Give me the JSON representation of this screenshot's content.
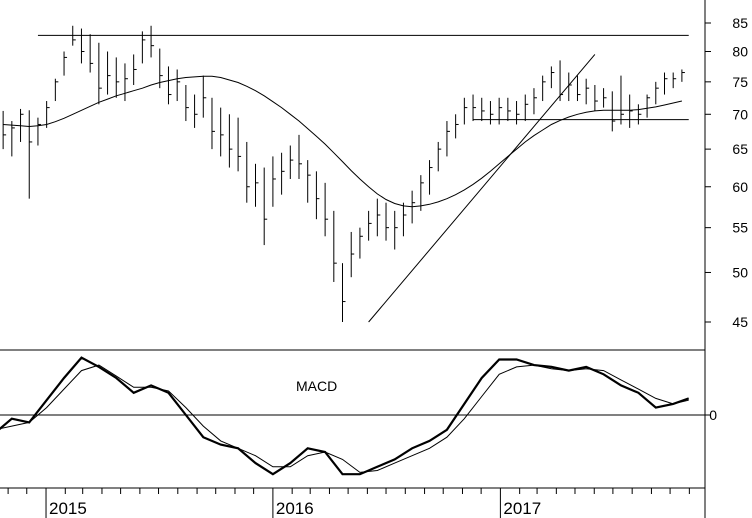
{
  "chart_data": [
    {
      "type": "ohlc",
      "panel": "price",
      "title": "",
      "y_scale": "log",
      "ylim": [
        42,
        88
      ],
      "y_ticks": [
        "85",
        "80",
        "75",
        "70",
        "65",
        "60",
        "55",
        "50",
        "45"
      ],
      "x_ticks": [
        "2015",
        "2016",
        "2017"
      ],
      "x": [
        "2014-10-24",
        "2014-11-07",
        "2014-11-21",
        "2014-12-05",
        "2014-12-19",
        "2015-01-02",
        "2015-01-16",
        "2015-01-30",
        "2015-02-13",
        "2015-02-27",
        "2015-03-13",
        "2015-03-27",
        "2015-04-10",
        "2015-04-24",
        "2015-05-08",
        "2015-05-22",
        "2015-06-05",
        "2015-06-19",
        "2015-07-03",
        "2015-07-17",
        "2015-07-31",
        "2015-08-14",
        "2015-08-28",
        "2015-09-11",
        "2015-09-25",
        "2015-10-09",
        "2015-10-23",
        "2015-11-06",
        "2015-11-20",
        "2015-12-04",
        "2015-12-18",
        "2016-01-01",
        "2016-01-15",
        "2016-01-29",
        "2016-02-12",
        "2016-02-26",
        "2016-03-11",
        "2016-03-25",
        "2016-04-08",
        "2016-04-22",
        "2016-05-06",
        "2016-05-20",
        "2016-06-03",
        "2016-06-17",
        "2016-07-01",
        "2016-07-15",
        "2016-07-29",
        "2016-08-12",
        "2016-08-26",
        "2016-09-09",
        "2016-09-23",
        "2016-10-07",
        "2016-10-21",
        "2016-11-04",
        "2016-11-18",
        "2016-12-02",
        "2016-12-16",
        "2016-12-30",
        "2017-01-13",
        "2017-01-27",
        "2017-02-10",
        "2017-02-24",
        "2017-03-10",
        "2017-03-24",
        "2017-04-07",
        "2017-04-21",
        "2017-05-05",
        "2017-05-19",
        "2017-06-02",
        "2017-06-16",
        "2017-06-30",
        "2017-07-14",
        "2017-07-28",
        "2017-08-11",
        "2017-08-25",
        "2017-09-08",
        "2017-09-22",
        "2017-10-06",
        "2017-10-20"
      ],
      "high": [
        70.5,
        69.0,
        70.8,
        70.6,
        69.5,
        72.0,
        75.5,
        80.0,
        84.5,
        84.0,
        83.0,
        81.5,
        80.0,
        79.0,
        78.0,
        79.5,
        83.5,
        84.5,
        80.5,
        77.5,
        77.0,
        74.5,
        73.0,
        76.0,
        72.5,
        71.0,
        70.0,
        69.5,
        66.0,
        63.0,
        62.5,
        64.0,
        64.5,
        65.5,
        67.0,
        63.5,
        62.0,
        60.5,
        57.0,
        51.0,
        54.5,
        55.0,
        57.0,
        58.5,
        58.0,
        57.0,
        58.0,
        59.5,
        61.5,
        63.5,
        66.0,
        69.0,
        70.0,
        72.5,
        73.0,
        72.5,
        72.0,
        72.5,
        72.5,
        72.0,
        73.0,
        74.0,
        76.0,
        77.5,
        78.5,
        76.5,
        76.0,
        75.5,
        74.5,
        74.0,
        73.5,
        76.0,
        73.0,
        71.5,
        73.0,
        75.0,
        76.5,
        76.5,
        77.0
      ],
      "low": [
        65.0,
        64.0,
        66.0,
        58.5,
        65.5,
        68.0,
        72.0,
        76.0,
        81.0,
        78.0,
        76.5,
        71.5,
        73.0,
        72.5,
        72.0,
        74.5,
        78.0,
        79.0,
        74.0,
        71.5,
        72.0,
        69.0,
        68.0,
        69.5,
        65.0,
        64.0,
        62.5,
        62.0,
        58.0,
        57.5,
        53.0,
        57.5,
        59.0,
        61.0,
        61.0,
        58.0,
        56.0,
        54.0,
        49.0,
        45.0,
        49.5,
        51.5,
        53.5,
        54.0,
        53.5,
        52.5,
        54.0,
        55.5,
        57.0,
        59.0,
        62.0,
        64.0,
        66.5,
        68.5,
        69.0,
        69.0,
        68.5,
        68.5,
        69.0,
        68.5,
        69.0,
        70.0,
        72.0,
        74.0,
        72.0,
        72.0,
        72.0,
        71.5,
        70.5,
        71.0,
        67.5,
        68.5,
        68.0,
        68.5,
        69.5,
        71.5,
        73.0,
        74.0,
        75.0
      ],
      "close": [
        67.0,
        68.0,
        70.0,
        66.0,
        68.5,
        71.0,
        75.0,
        79.0,
        82.0,
        80.0,
        78.0,
        74.0,
        76.0,
        75.0,
        75.5,
        77.0,
        82.0,
        81.0,
        76.0,
        73.0,
        75.0,
        71.0,
        70.0,
        72.5,
        67.5,
        67.0,
        65.0,
        64.0,
        60.0,
        60.5,
        56.0,
        61.0,
        62.0,
        63.5,
        63.0,
        61.5,
        58.5,
        56.0,
        51.0,
        47.0,
        52.0,
        54.0,
        55.5,
        56.5,
        55.0,
        55.0,
        56.5,
        58.0,
        60.5,
        62.5,
        65.0,
        67.5,
        68.5,
        71.0,
        71.0,
        70.5,
        70.0,
        71.0,
        70.5,
        70.0,
        71.5,
        72.5,
        75.0,
        76.5,
        73.0,
        74.5,
        73.0,
        74.0,
        72.0,
        72.5,
        69.0,
        70.0,
        70.5,
        70.0,
        72.5,
        74.0,
        75.5,
        75.5,
        76.5
      ],
      "moving_average": [
        68.5,
        68.4,
        68.3,
        68.2,
        68.3,
        68.5,
        68.9,
        69.4,
        70.0,
        70.6,
        71.2,
        71.8,
        72.3,
        72.8,
        73.2,
        73.6,
        74.0,
        74.5,
        74.9,
        75.2,
        75.5,
        75.7,
        75.8,
        75.9,
        75.9,
        75.7,
        75.3,
        74.9,
        74.3,
        73.6,
        72.8,
        71.9,
        71.0,
        70.0,
        69.0,
        67.9,
        66.8,
        65.7,
        64.5,
        63.3,
        62.1,
        61.0,
        60.0,
        59.1,
        58.4,
        57.9,
        57.6,
        57.5,
        57.6,
        57.8,
        58.1,
        58.5,
        59.0,
        59.6,
        60.3,
        61.1,
        62.0,
        63.0,
        64.0,
        65.0,
        66.0,
        66.9,
        67.7,
        68.5,
        69.1,
        69.6,
        70.0,
        70.3,
        70.5,
        70.6,
        70.6,
        70.6,
        70.6,
        70.7,
        70.9,
        71.1,
        71.4,
        71.7,
        72.0
      ],
      "support_resistance": [
        {
          "from": "2014-12-19",
          "to": "2017-10-31",
          "value": 82.8
        },
        {
          "from": "2016-11-18",
          "to": "2017-10-31",
          "value": 69.2
        }
      ],
      "trendline": {
        "from": [
          "2016-06-03",
          45.0
        ],
        "to": [
          "2017-06-02",
          79.5
        ]
      }
    },
    {
      "type": "line",
      "panel": "indicator",
      "title": "MACD",
      "y_ticks": [
        "0"
      ],
      "ylim": [
        -2.5,
        2.0
      ],
      "x_ticks": [
        "2015",
        "2016",
        "2017"
      ],
      "x": [
        "2014-10-10",
        "2014-11-07",
        "2014-12-05",
        "2015-01-02",
        "2015-01-30",
        "2015-02-27",
        "2015-03-27",
        "2015-04-24",
        "2015-05-22",
        "2015-06-19",
        "2015-07-17",
        "2015-08-14",
        "2015-09-11",
        "2015-10-09",
        "2015-11-06",
        "2015-12-04",
        "2016-01-01",
        "2016-01-29",
        "2016-02-26",
        "2016-03-25",
        "2016-04-22",
        "2016-05-20",
        "2016-06-17",
        "2016-07-15",
        "2016-08-12",
        "2016-09-09",
        "2016-10-07",
        "2016-11-04",
        "2016-12-02",
        "2016-12-30",
        "2017-01-27",
        "2017-02-24",
        "2017-03-24",
        "2017-04-21",
        "2017-05-19",
        "2017-06-16",
        "2017-07-14",
        "2017-08-11",
        "2017-09-08",
        "2017-10-06",
        "2017-10-31"
      ],
      "series": [
        {
          "name": "",
          "values": [
            -0.5,
            -0.1,
            -0.2,
            0.4,
            1.0,
            1.55,
            1.3,
            1.0,
            0.6,
            0.8,
            0.6,
            0.0,
            -0.6,
            -0.8,
            -0.9,
            -1.3,
            -1.6,
            -1.3,
            -0.9,
            -1.0,
            -1.6,
            -1.6,
            -1.4,
            -1.2,
            -0.9,
            -0.7,
            -0.4,
            0.3,
            1.0,
            1.5,
            1.5,
            1.35,
            1.3,
            1.2,
            1.3,
            1.1,
            0.8,
            0.6,
            0.2,
            0.3,
            0.45
          ],
          "style": "thick"
        },
        {
          "name": "",
          "values": [
            -0.4,
            -0.3,
            -0.2,
            0.2,
            0.7,
            1.2,
            1.35,
            1.05,
            0.75,
            0.75,
            0.65,
            0.2,
            -0.3,
            -0.7,
            -0.9,
            -1.1,
            -1.4,
            -1.4,
            -1.1,
            -1.0,
            -1.2,
            -1.55,
            -1.5,
            -1.3,
            -1.1,
            -0.9,
            -0.6,
            -0.1,
            0.5,
            1.1,
            1.3,
            1.35,
            1.25,
            1.2,
            1.25,
            1.2,
            0.95,
            0.7,
            0.45,
            0.3,
            0.4
          ],
          "style": "thin"
        }
      ],
      "reference_line": 0
    }
  ]
}
